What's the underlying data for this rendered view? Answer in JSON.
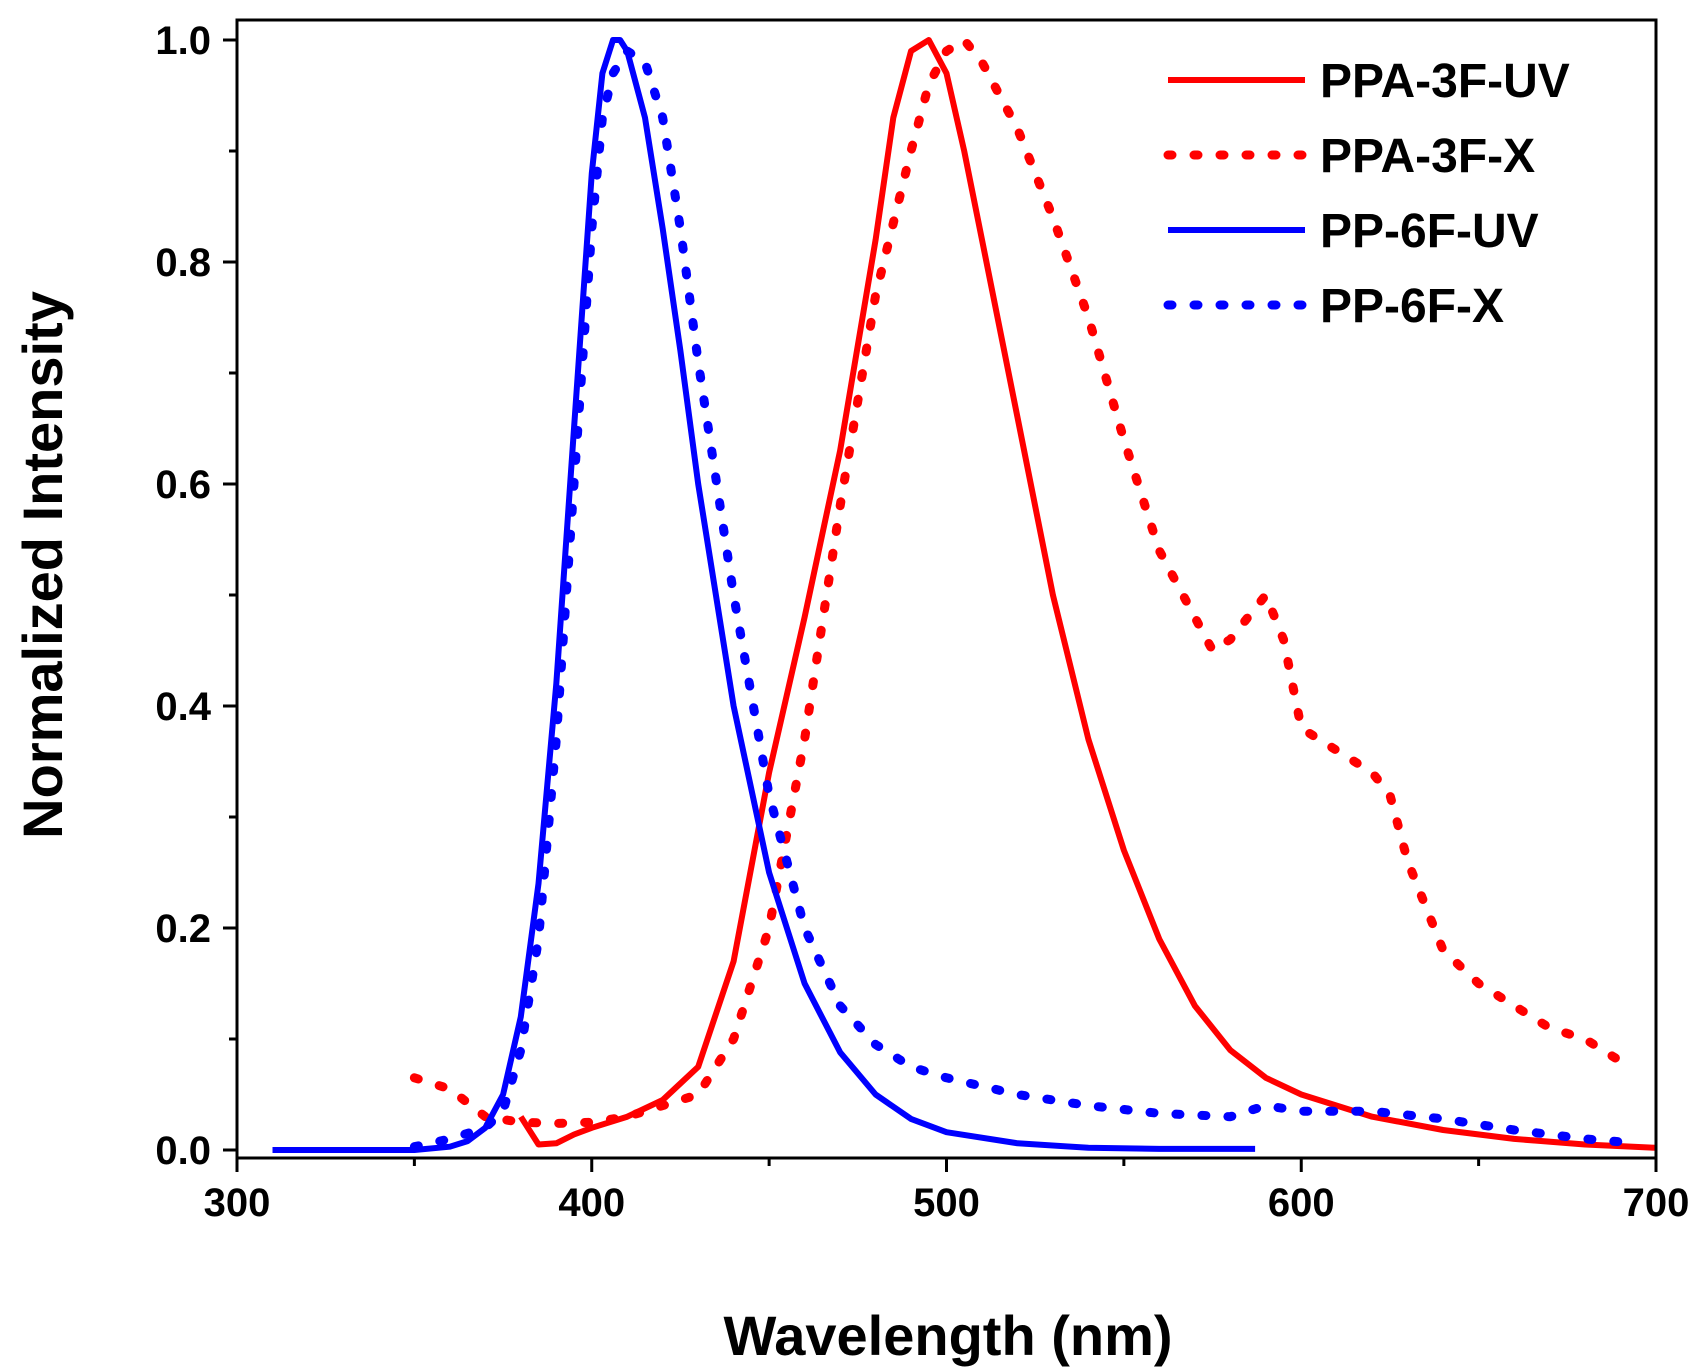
{
  "chart_data": {
    "type": "line",
    "xlabel": "Wavelength (nm)",
    "ylabel": "Normalized Intensity",
    "xlim": [
      300,
      700
    ],
    "ylim": [
      0.0,
      1.0
    ],
    "x_ticks": [
      300,
      400,
      500,
      600,
      700
    ],
    "x_tick_labels": [
      "300",
      "400",
      "500",
      "600",
      "700"
    ],
    "y_ticks": [
      0.0,
      0.2,
      0.4,
      0.6,
      0.8,
      1.0
    ],
    "y_tick_labels": [
      "0.0",
      "0.2",
      "0.4",
      "0.6",
      "0.8",
      "1.0"
    ],
    "legend_position": "top-right",
    "series": [
      {
        "name": "PPA-3F-UV",
        "color": "#ff0000",
        "style": "solid",
        "x": [
          380,
          385,
          390,
          395,
          400,
          410,
          420,
          430,
          440,
          450,
          460,
          470,
          480,
          485,
          490,
          495,
          500,
          505,
          510,
          520,
          530,
          540,
          550,
          560,
          570,
          580,
          590,
          600,
          620,
          640,
          660,
          680,
          700
        ],
        "y": [
          0.03,
          0.005,
          0.006,
          0.014,
          0.02,
          0.03,
          0.045,
          0.075,
          0.17,
          0.34,
          0.48,
          0.63,
          0.82,
          0.93,
          0.99,
          1.0,
          0.97,
          0.9,
          0.82,
          0.66,
          0.5,
          0.37,
          0.27,
          0.19,
          0.13,
          0.09,
          0.065,
          0.05,
          0.03,
          0.018,
          0.01,
          0.005,
          0.002
        ]
      },
      {
        "name": "PPA-3F-X",
        "color": "#ff0000",
        "style": "dotted",
        "x": [
          350,
          360,
          370,
          380,
          390,
          400,
          410,
          420,
          430,
          440,
          450,
          460,
          470,
          480,
          490,
          495,
          500,
          505,
          510,
          520,
          530,
          540,
          550,
          560,
          570,
          575,
          580,
          585,
          590,
          595,
          600,
          610,
          620,
          625,
          630,
          640,
          650,
          660,
          670,
          680,
          690
        ],
        "y": [
          0.065,
          0.055,
          0.03,
          0.025,
          0.024,
          0.025,
          0.03,
          0.04,
          0.05,
          0.1,
          0.2,
          0.37,
          0.58,
          0.77,
          0.9,
          0.96,
          0.99,
          1.0,
          0.98,
          0.92,
          0.84,
          0.75,
          0.64,
          0.54,
          0.48,
          0.45,
          0.46,
          0.48,
          0.5,
          0.46,
          0.38,
          0.36,
          0.34,
          0.32,
          0.26,
          0.18,
          0.15,
          0.13,
          0.11,
          0.1,
          0.08
        ]
      },
      {
        "name": "PP-6F-UV",
        "color": "#0000ff",
        "style": "solid",
        "x": [
          310,
          330,
          350,
          360,
          365,
          370,
          375,
          380,
          385,
          390,
          395,
          400,
          403,
          406,
          408,
          410,
          415,
          420,
          425,
          430,
          440,
          450,
          460,
          470,
          480,
          490,
          500,
          520,
          540,
          560,
          587
        ],
        "y": [
          0.0,
          0.0,
          0.0,
          0.003,
          0.008,
          0.02,
          0.05,
          0.12,
          0.24,
          0.42,
          0.65,
          0.88,
          0.97,
          1.0,
          1.0,
          0.99,
          0.93,
          0.83,
          0.72,
          0.6,
          0.4,
          0.25,
          0.15,
          0.088,
          0.05,
          0.028,
          0.016,
          0.006,
          0.002,
          0.001,
          0.001
        ]
      },
      {
        "name": "PP-6F-X",
        "color": "#0000ff",
        "style": "dotted",
        "x": [
          350,
          360,
          370,
          375,
          380,
          385,
          390,
          395,
          400,
          403,
          406,
          410,
          415,
          420,
          425,
          430,
          440,
          450,
          460,
          470,
          480,
          490,
          500,
          520,
          540,
          560,
          580,
          590,
          600,
          620,
          640,
          660,
          680,
          695
        ],
        "y": [
          0.003,
          0.01,
          0.02,
          0.035,
          0.09,
          0.19,
          0.37,
          0.6,
          0.83,
          0.93,
          0.97,
          0.99,
          0.98,
          0.93,
          0.83,
          0.71,
          0.5,
          0.32,
          0.2,
          0.13,
          0.095,
          0.075,
          0.065,
          0.05,
          0.04,
          0.033,
          0.03,
          0.04,
          0.035,
          0.035,
          0.028,
          0.018,
          0.01,
          0.006
        ]
      }
    ]
  }
}
